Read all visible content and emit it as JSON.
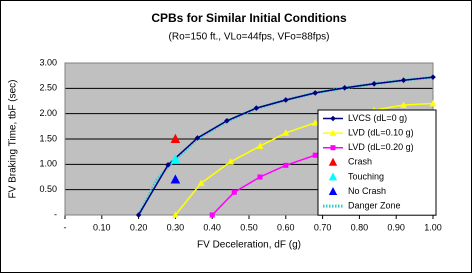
{
  "chart_data": {
    "type": "line",
    "title": "CPBs for Similar Initial Conditions",
    "subtitle": "(Ro=150 ft., VLo=44fps, VFo=88fps)",
    "x_label": "FV Deceleration, dF (g)",
    "y_label": "FV Braking Time, tbF (sec)",
    "xlim": [
      0,
      1
    ],
    "xticks": [
      {
        "value": 0,
        "label": "-"
      },
      {
        "value": 0.1,
        "label": "0.10"
      },
      {
        "value": 0.2,
        "label": "0.20"
      },
      {
        "value": 0.3,
        "label": "0.30"
      },
      {
        "value": 0.4,
        "label": "0.40"
      },
      {
        "value": 0.5,
        "label": "0.50"
      },
      {
        "value": 0.6,
        "label": "0.60"
      },
      {
        "value": 0.7,
        "label": "0.70"
      },
      {
        "value": 0.8,
        "label": "0.80"
      },
      {
        "value": 0.9,
        "label": "0.90"
      },
      {
        "value": 1,
        "label": "1.00"
      }
    ],
    "ylim": [
      0,
      3
    ],
    "yticks": [
      {
        "value": 0,
        "label": "-"
      },
      {
        "value": 0.5,
        "label": "0.50"
      },
      {
        "value": 1,
        "label": "1.00"
      },
      {
        "value": 1.5,
        "label": "1.50"
      },
      {
        "value": 2,
        "label": "2.00"
      },
      {
        "value": 2.5,
        "label": "2.50"
      },
      {
        "value": 3,
        "label": "3.00"
      }
    ],
    "grid": true,
    "legend": "right",
    "series": [
      {
        "name": "LVCS (dL=0 g)",
        "color": "#000080",
        "marker": "diamond",
        "line": true,
        "x": [
          0.2,
          0.28,
          0.36,
          0.44,
          0.52,
          0.6,
          0.68,
          0.76,
          0.84,
          0.92,
          1.0
        ],
        "values": [
          0,
          0.99,
          1.52,
          1.86,
          2.11,
          2.27,
          2.41,
          2.51,
          2.59,
          2.66,
          2.72
        ]
      },
      {
        "name": "LVD (dL=0.10 g)",
        "color": "#ffff00",
        "marker": "triangle",
        "line": true,
        "x": [
          0.3,
          0.37,
          0.45,
          0.53,
          0.6,
          0.68,
          0.77,
          0.84,
          0.92,
          1.0
        ],
        "values": [
          0,
          0.63,
          1.05,
          1.36,
          1.62,
          1.82,
          1.95,
          2.07,
          2.17,
          2.2
        ]
      },
      {
        "name": "LVD (dL=0.20 g)",
        "color": "#ff00ff",
        "marker": "square",
        "line": true,
        "x": [
          0.4,
          0.46,
          0.53,
          0.6,
          0.68,
          0.76,
          0.84,
          0.92,
          1.0
        ],
        "values": [
          0,
          0.45,
          0.75,
          0.98,
          1.18,
          1.35,
          1.5,
          1.63,
          1.8
        ]
      },
      {
        "name": "Crash",
        "color": "#ff0000",
        "marker": "triangle",
        "line": false,
        "x": [
          0.3
        ],
        "values": [
          1.5
        ]
      },
      {
        "name": "Touching",
        "color": "#00ffff",
        "marker": "triangle",
        "line": false,
        "x": [
          0.3
        ],
        "values": [
          1.1
        ]
      },
      {
        "name": "No Crash",
        "color": "#0000ff",
        "marker": "triangle",
        "line": false,
        "x": [
          0.3
        ],
        "values": [
          0.7
        ]
      },
      {
        "name": "Danger Zone",
        "color": "#33cccc",
        "line": true,
        "dash": "dotted",
        "x": [
          0.2,
          0.25,
          0.3,
          0.36,
          0.44,
          0.52,
          0.6,
          0.68,
          0.76,
          0.84,
          0.92,
          1.0
        ],
        "values": [
          0,
          0.7,
          1.1,
          1.5,
          1.85,
          2.1,
          2.27,
          2.41,
          2.51,
          2.59,
          2.66,
          2.72
        ]
      }
    ]
  }
}
